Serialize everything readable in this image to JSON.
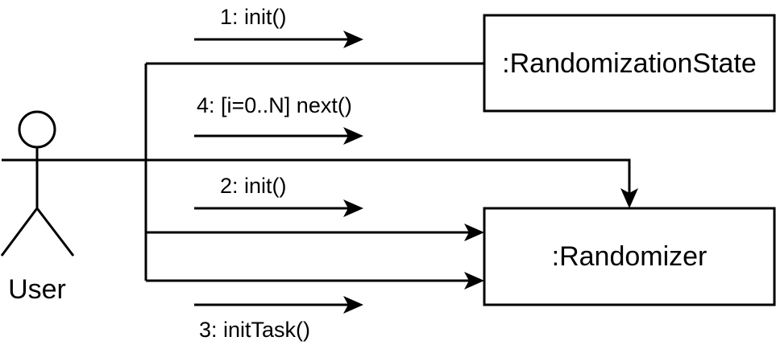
{
  "actor": {
    "label": "User"
  },
  "objects": {
    "randomization_state": ":RandomizationState",
    "randomizer": ":Randomizer"
  },
  "messages": [
    {
      "id": "m1",
      "label": "1: init()"
    },
    {
      "id": "m2",
      "label": "2: init()"
    },
    {
      "id": "m3",
      "label": "3: initTask()"
    },
    {
      "id": "m4",
      "label": "4: [i=0..N] next()"
    }
  ],
  "colors": {
    "stroke": "#000000",
    "background": "#ffffff"
  }
}
